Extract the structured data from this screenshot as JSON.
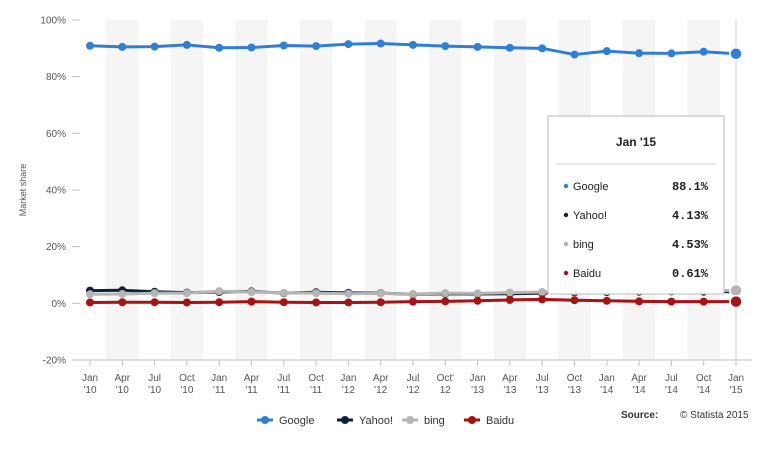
{
  "chart_data": {
    "type": "line",
    "ylabel": "Market share",
    "ylim": [
      -20,
      100
    ],
    "yticks": [
      -20,
      0,
      20,
      40,
      60,
      80,
      100
    ],
    "y_tick_labels": [
      "-20%",
      "0%",
      "20%",
      "40%",
      "60%",
      "80%",
      "100%"
    ],
    "grid": "alternating vertical bands",
    "x_tick_labels": [
      [
        "Jan",
        "'10"
      ],
      [
        "Apr",
        "'10"
      ],
      [
        "Jul",
        "'10"
      ],
      [
        "Oct",
        "'10"
      ],
      [
        "Jan",
        "'11"
      ],
      [
        "Apr",
        "'11"
      ],
      [
        "Jul",
        "'11"
      ],
      [
        "Oct",
        "'11"
      ],
      [
        "Jan",
        "'12"
      ],
      [
        "Apr",
        "'12"
      ],
      [
        "Jul",
        "'12"
      ],
      [
        "Oct'",
        "12"
      ],
      [
        "Jan",
        "'13"
      ],
      [
        "Apr",
        "'13"
      ],
      [
        "Jul",
        "'13"
      ],
      [
        "Oct",
        "'13"
      ],
      [
        "Jan",
        "'14"
      ],
      [
        "Apr",
        "'14"
      ],
      [
        "Jul",
        "'14"
      ],
      [
        "Oct",
        "'14"
      ],
      [
        "Jan",
        "'15"
      ]
    ],
    "series": [
      {
        "name": "Google",
        "color": "#2f7ed8",
        "values": [
          90.9,
          90.5,
          90.6,
          91.2,
          90.2,
          90.3,
          91.0,
          90.8,
          91.5,
          91.7,
          91.2,
          90.8,
          90.5,
          90.2,
          90.0,
          87.8,
          89.0,
          88.3,
          88.2,
          88.8,
          88.1
        ]
      },
      {
        "name": "Yahoo!",
        "color": "#0d233a",
        "values": [
          4.5,
          4.6,
          4.1,
          3.8,
          4.0,
          4.2,
          3.6,
          3.9,
          3.7,
          3.6,
          3.2,
          3.4,
          3.3,
          3.4,
          3.6,
          3.9,
          4.0,
          4.1,
          4.2,
          4.1,
          4.13
        ]
      },
      {
        "name": "bing",
        "color": "#b5b5b5",
        "values": [
          3.2,
          3.3,
          3.6,
          3.6,
          4.3,
          4.0,
          3.7,
          3.6,
          3.4,
          3.5,
          3.3,
          3.6,
          3.5,
          3.8,
          4.0,
          4.2,
          4.3,
          4.4,
          4.4,
          4.6,
          4.53
        ]
      },
      {
        "name": "Baidu",
        "color": "#aa1111",
        "values": [
          0.3,
          0.4,
          0.4,
          0.3,
          0.4,
          0.6,
          0.4,
          0.3,
          0.3,
          0.4,
          0.6,
          0.7,
          0.9,
          1.2,
          1.4,
          1.1,
          0.9,
          0.7,
          0.6,
          0.6,
          0.61
        ]
      }
    ],
    "legend_position": "bottom-center",
    "legend": [
      "Google",
      "Yahoo!",
      "bing",
      "Baidu"
    ],
    "source_label": "Source:",
    "source_value": "© Statista 2015",
    "tooltip": {
      "title": "Jan '15",
      "rows": [
        {
          "name": "Google",
          "value": "88.1%",
          "color": "#2f7ed8"
        },
        {
          "name": "Yahoo!",
          "value": "4.13%",
          "color": "#0d233a"
        },
        {
          "name": "bing",
          "value": "4.53%",
          "color": "#b5b5b5"
        },
        {
          "name": "Baidu",
          "value": "0.61%",
          "color": "#aa1111"
        }
      ]
    }
  }
}
